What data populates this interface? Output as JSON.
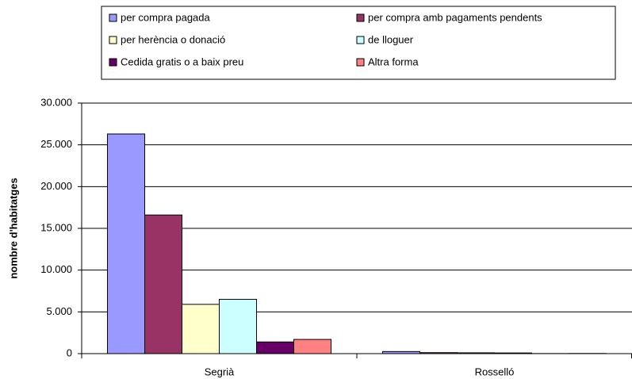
{
  "chart_data": {
    "type": "bar",
    "y_label": "nombre d'habitatges",
    "categories": [
      "Segrià",
      "Rosselló"
    ],
    "series": [
      {
        "name": "per compra pagada",
        "color": "#9999ff",
        "values": [
          26300,
          250
        ]
      },
      {
        "name": "per compra amb pagaments pendents",
        "color": "#993366",
        "values": [
          16600,
          120
        ]
      },
      {
        "name": "per herència o donació",
        "color": "#ffffcc",
        "values": [
          5900,
          100
        ]
      },
      {
        "name": "de lloguer",
        "color": "#ccffff",
        "values": [
          6500,
          80
        ]
      },
      {
        "name": "Cedida gratis o a baix preu",
        "color": "#660066",
        "values": [
          1400,
          10
        ]
      },
      {
        "name": "Altra forma",
        "color": "#ff8080",
        "values": [
          1700,
          20
        ]
      }
    ],
    "ylim": [
      0,
      30000
    ],
    "yticks": [
      0,
      {
        "value": 5000,
        "label": "5.000"
      },
      {
        "value": 10000,
        "label": "10.000"
      },
      {
        "value": 15000,
        "label": "15.000"
      },
      {
        "value": 20000,
        "label": "20.000"
      },
      {
        "value": 25000,
        "label": "25.000"
      },
      {
        "value": 30000,
        "label": "30.000"
      }
    ],
    "grid": true
  }
}
